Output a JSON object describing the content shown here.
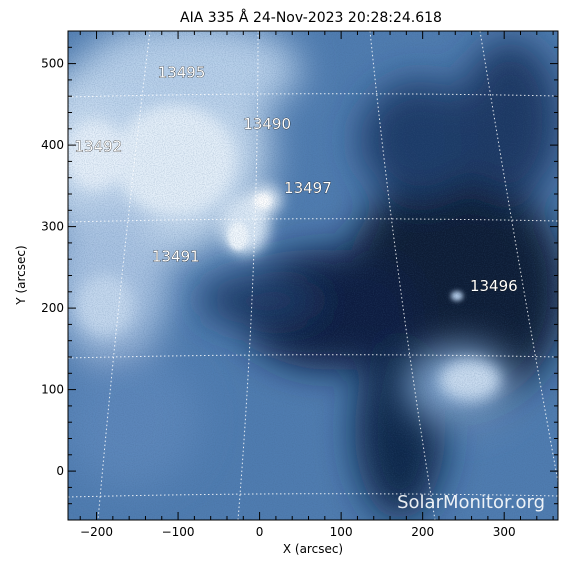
{
  "title": "AIA 335 Å 24-Nov-2023 20:28:24.618",
  "watermark": "SolarMonitor.org",
  "x_axis": {
    "label": "X (arcsec)",
    "range": [
      -235,
      366
    ],
    "ticks": [
      {
        "v": -200,
        "t": "−200"
      },
      {
        "v": -100,
        "t": "−100"
      },
      {
        "v": 0,
        "t": "0"
      },
      {
        "v": 100,
        "t": "100"
      },
      {
        "v": 200,
        "t": "200"
      },
      {
        "v": 300,
        "t": "300"
      }
    ]
  },
  "y_axis": {
    "label": "Y (arcsec)",
    "range": [
      -60,
      540
    ],
    "ticks": [
      {
        "v": 0,
        "t": "0"
      },
      {
        "v": 100,
        "t": "100"
      },
      {
        "v": 200,
        "t": "200"
      },
      {
        "v": 300,
        "t": "300"
      },
      {
        "v": 400,
        "t": "400"
      },
      {
        "v": 500,
        "t": "500"
      }
    ]
  },
  "active_regions": [
    {
      "label": "13495",
      "x": -125,
      "y": 483
    },
    {
      "label": "13490",
      "x": -20,
      "y": 420
    },
    {
      "label": "13492",
      "x": -227,
      "y": 392
    },
    {
      "label": "13497",
      "x": 30,
      "y": 341
    },
    {
      "label": "13491",
      "x": -132,
      "y": 257
    },
    {
      "label": "13496",
      "x": 258,
      "y": 221
    }
  ],
  "colors": {
    "bright": "#dce9f6",
    "mid": "#6f95c0",
    "dark": "#0b1d3c",
    "grid": "#ffffff"
  }
}
